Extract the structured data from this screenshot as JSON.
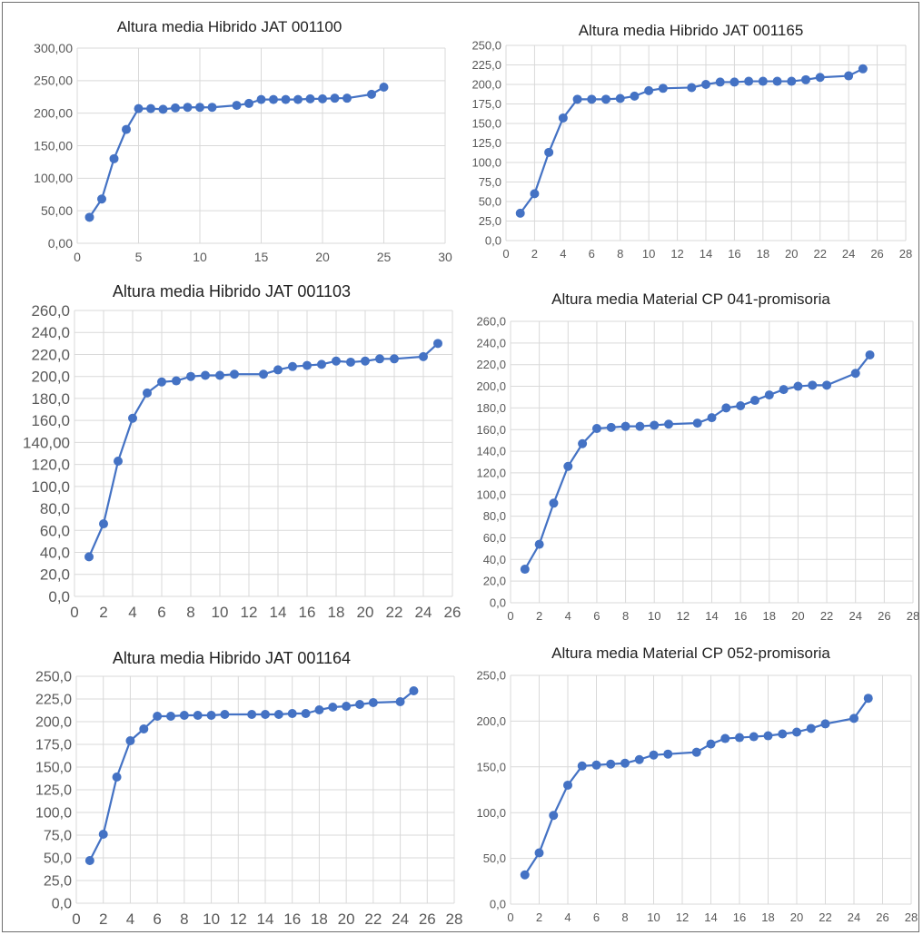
{
  "colors": {
    "series": "#4472c4",
    "grid": "#d9d9d9",
    "tick_text": "#595959",
    "border": "#6f6f6f"
  },
  "chart_data": [
    {
      "type": "scatter",
      "title": "Altura media Hibrido JAT 001100",
      "xlabel": "",
      "ylabel": "",
      "xlim": [
        0,
        30
      ],
      "ylim": [
        0,
        300
      ],
      "x_ticks": [
        "0",
        "5",
        "10",
        "15",
        "20",
        "25",
        "30"
      ],
      "y_ticks": [
        "0,00",
        "50,00",
        "100,00",
        "150,00",
        "200,00",
        "250,00",
        "300,00"
      ],
      "grid": true,
      "legend": "none",
      "points": [
        [
          1,
          40
        ],
        [
          2,
          68
        ],
        [
          3,
          130
        ],
        [
          4,
          175
        ],
        [
          5,
          207
        ],
        [
          6,
          207
        ],
        [
          7,
          206
        ],
        [
          8,
          208
        ],
        [
          9,
          209
        ],
        [
          10,
          209
        ],
        [
          11,
          209
        ],
        [
          13,
          212
        ],
        [
          14,
          215
        ],
        [
          15,
          221
        ],
        [
          16,
          221
        ],
        [
          17,
          221
        ],
        [
          18,
          221
        ],
        [
          19,
          222
        ],
        [
          20,
          222
        ],
        [
          21,
          223
        ],
        [
          22,
          223
        ],
        [
          24,
          229
        ],
        [
          25,
          240
        ]
      ]
    },
    {
      "type": "scatter",
      "title": "Altura media Hibrido JAT 001165",
      "xlabel": "",
      "ylabel": "",
      "xlim": [
        0,
        28
      ],
      "ylim": [
        0,
        250
      ],
      "x_ticks": [
        "0",
        "2",
        "4",
        "6",
        "8",
        "10",
        "12",
        "14",
        "16",
        "18",
        "20",
        "22",
        "24",
        "26",
        "28"
      ],
      "y_ticks": [
        "0,0",
        "25,0",
        "50,0",
        "75,0",
        "100,0",
        "125,0",
        "150,0",
        "175,0",
        "200,0",
        "225,0",
        "250,0"
      ],
      "grid": true,
      "legend": "none",
      "points": [
        [
          1,
          35
        ],
        [
          2,
          60
        ],
        [
          3,
          113
        ],
        [
          4,
          157
        ],
        [
          5,
          181
        ],
        [
          6,
          181
        ],
        [
          7,
          181
        ],
        [
          8,
          182
        ],
        [
          9,
          185
        ],
        [
          10,
          192
        ],
        [
          11,
          195
        ],
        [
          13,
          196
        ],
        [
          14,
          200
        ],
        [
          15,
          203
        ],
        [
          16,
          203
        ],
        [
          17,
          204
        ],
        [
          18,
          204
        ],
        [
          19,
          204
        ],
        [
          20,
          204
        ],
        [
          21,
          206
        ],
        [
          22,
          209
        ],
        [
          24,
          211
        ],
        [
          25,
          220
        ]
      ]
    },
    {
      "type": "scatter",
      "title": "Altura media Hibrido JAT 001103",
      "xlabel": "",
      "ylabel": "",
      "xlim": [
        0,
        26
      ],
      "ylim": [
        0,
        260
      ],
      "x_ticks": [
        "0",
        "2",
        "4",
        "6",
        "8",
        "10",
        "12",
        "14",
        "16",
        "18",
        "20",
        "22",
        "24",
        "26"
      ],
      "y_ticks": [
        "0,0",
        "20,0",
        "40,0",
        "60,0",
        "80,0",
        "100,0",
        "120,0",
        "140,00",
        "160,0",
        "180,0",
        "200,0",
        "220,0",
        "240,0",
        "260,0"
      ],
      "grid": true,
      "legend": "none",
      "points": [
        [
          1,
          36
        ],
        [
          2,
          66
        ],
        [
          3,
          123
        ],
        [
          4,
          162
        ],
        [
          5,
          185
        ],
        [
          6,
          195
        ],
        [
          7,
          196
        ],
        [
          8,
          200
        ],
        [
          9,
          201
        ],
        [
          10,
          201
        ],
        [
          11,
          202
        ],
        [
          13,
          202
        ],
        [
          14,
          206
        ],
        [
          15,
          209
        ],
        [
          16,
          210
        ],
        [
          17,
          211
        ],
        [
          18,
          214
        ],
        [
          19,
          213
        ],
        [
          20,
          214
        ],
        [
          21,
          216
        ],
        [
          22,
          216
        ],
        [
          24,
          218
        ],
        [
          25,
          230
        ]
      ]
    },
    {
      "type": "scatter",
      "title": "Altura media Material CP 041-promisoria",
      "xlabel": "",
      "ylabel": "",
      "xlim": [
        0,
        28
      ],
      "ylim": [
        0,
        260
      ],
      "x_ticks": [
        "0",
        "2",
        "4",
        "6",
        "8",
        "10",
        "12",
        "14",
        "16",
        "18",
        "20",
        "22",
        "24",
        "26",
        "28"
      ],
      "y_ticks": [
        "0,0",
        "20,0",
        "40,0",
        "60,0",
        "80,0",
        "100,0",
        "120,0",
        "140,0",
        "160,0",
        "180,0",
        "200,0",
        "220,0",
        "240,0",
        "260,0"
      ],
      "grid": true,
      "legend": "none",
      "points": [
        [
          1,
          31
        ],
        [
          2,
          54
        ],
        [
          3,
          92
        ],
        [
          4,
          126
        ],
        [
          5,
          147
        ],
        [
          6,
          161
        ],
        [
          7,
          162
        ],
        [
          8,
          163
        ],
        [
          9,
          163
        ],
        [
          10,
          164
        ],
        [
          11,
          165
        ],
        [
          13,
          166
        ],
        [
          14,
          171
        ],
        [
          15,
          180
        ],
        [
          16,
          182
        ],
        [
          17,
          187
        ],
        [
          18,
          192
        ],
        [
          19,
          197
        ],
        [
          20,
          200
        ],
        [
          21,
          201
        ],
        [
          22,
          201
        ],
        [
          24,
          212
        ],
        [
          25,
          229
        ]
      ]
    },
    {
      "type": "scatter",
      "title": "Altura media Hibrido JAT 001164",
      "xlabel": "",
      "ylabel": "",
      "xlim": [
        0,
        28
      ],
      "ylim": [
        0,
        250
      ],
      "x_ticks": [
        "0",
        "2",
        "4",
        "6",
        "8",
        "10",
        "12",
        "14",
        "16",
        "18",
        "20",
        "22",
        "24",
        "26",
        "28"
      ],
      "y_ticks": [
        "0,0",
        "25,0",
        "50,0",
        "75,0",
        "100,0",
        "125,0",
        "150,0",
        "175,0",
        "200,0",
        "225,0",
        "250,0"
      ],
      "grid": true,
      "legend": "none",
      "points": [
        [
          1,
          47
        ],
        [
          2,
          76
        ],
        [
          3,
          139
        ],
        [
          4,
          179
        ],
        [
          5,
          192
        ],
        [
          6,
          206
        ],
        [
          7,
          206
        ],
        [
          8,
          207
        ],
        [
          9,
          207
        ],
        [
          10,
          207
        ],
        [
          11,
          208
        ],
        [
          13,
          208
        ],
        [
          14,
          208
        ],
        [
          15,
          208
        ],
        [
          16,
          209
        ],
        [
          17,
          209
        ],
        [
          18,
          213
        ],
        [
          19,
          216
        ],
        [
          20,
          217
        ],
        [
          21,
          219
        ],
        [
          22,
          221
        ],
        [
          24,
          222
        ],
        [
          25,
          234
        ]
      ]
    },
    {
      "type": "scatter",
      "title": "Altura media Material CP 052-promisoria",
      "xlabel": "",
      "ylabel": "",
      "xlim": [
        0,
        28
      ],
      "ylim": [
        0,
        250
      ],
      "x_ticks": [
        "0",
        "2",
        "4",
        "6",
        "8",
        "10",
        "12",
        "14",
        "16",
        "18",
        "20",
        "22",
        "24",
        "26",
        "28"
      ],
      "y_ticks": [
        "0,0",
        "50,0",
        "100,0",
        "150,0",
        "200,0",
        "250,0"
      ],
      "grid": true,
      "legend": "none",
      "points": [
        [
          1,
          32
        ],
        [
          2,
          56
        ],
        [
          3,
          97
        ],
        [
          4,
          130
        ],
        [
          5,
          151
        ],
        [
          6,
          152
        ],
        [
          7,
          153
        ],
        [
          8,
          154
        ],
        [
          9,
          158
        ],
        [
          10,
          163
        ],
        [
          11,
          164
        ],
        [
          13,
          166
        ],
        [
          14,
          175
        ],
        [
          15,
          181
        ],
        [
          16,
          182
        ],
        [
          17,
          183
        ],
        [
          18,
          184
        ],
        [
          19,
          186
        ],
        [
          20,
          188
        ],
        [
          21,
          192
        ],
        [
          22,
          197
        ],
        [
          24,
          203
        ],
        [
          25,
          225
        ]
      ]
    }
  ]
}
